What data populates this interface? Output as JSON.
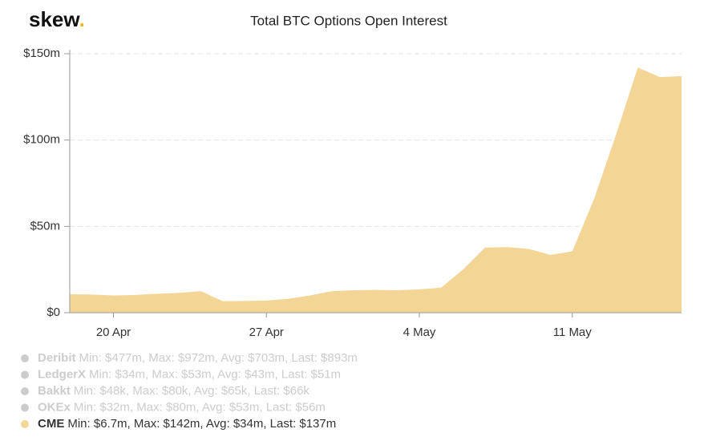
{
  "logo": "skew.",
  "chart_data": {
    "type": "area",
    "title": "Total BTC Options Open Interest",
    "categories": [
      null,
      null,
      "20 Apr",
      null,
      null,
      null,
      null,
      null,
      null,
      "27 Apr",
      null,
      null,
      null,
      null,
      null,
      null,
      "4 May",
      null,
      null,
      null,
      null,
      null,
      null,
      "11 May",
      null,
      null,
      null,
      null,
      null
    ],
    "series": [
      {
        "name": "Deribit",
        "color": "#cccccc",
        "visible": false,
        "stats": "Min: $477m, Max: $972m, Avg: $703m, Last: $893m"
      },
      {
        "name": "LedgerX",
        "color": "#cccccc",
        "visible": false,
        "stats": "Min: $34m, Max: $53m, Avg: $43m, Last: $51m"
      },
      {
        "name": "Bakkt",
        "color": "#cccccc",
        "visible": false,
        "stats": "Min: $48k, Max: $80k, Avg: $65k, Last: $66k"
      },
      {
        "name": "OKEx",
        "color": "#cccccc",
        "visible": false,
        "stats": "Min: $32m, Max: $80m, Avg: $53m, Last: $56m"
      },
      {
        "name": "CME",
        "color": "#f3d596",
        "visible": true,
        "stats": "Min: $6.7m, Max: $142m, Avg: $34m, Last: $137m",
        "values": [
          10.7,
          10.5,
          10,
          10.3,
          11,
          11.5,
          12.5,
          6.7,
          6.8,
          7,
          8,
          10,
          12.5,
          13,
          13.2,
          13,
          13.5,
          14.5,
          25,
          37.7,
          38,
          37,
          33.5,
          35.5,
          66,
          103,
          142,
          136.5,
          137
        ]
      }
    ],
    "ylim": [
      0,
      150
    ],
    "yticks": [
      {
        "value": 0,
        "label": "$0"
      },
      {
        "value": 50,
        "label": "$50m"
      },
      {
        "value": 100,
        "label": "$100m"
      },
      {
        "value": 150,
        "label": "$150m"
      }
    ],
    "grid": true
  }
}
